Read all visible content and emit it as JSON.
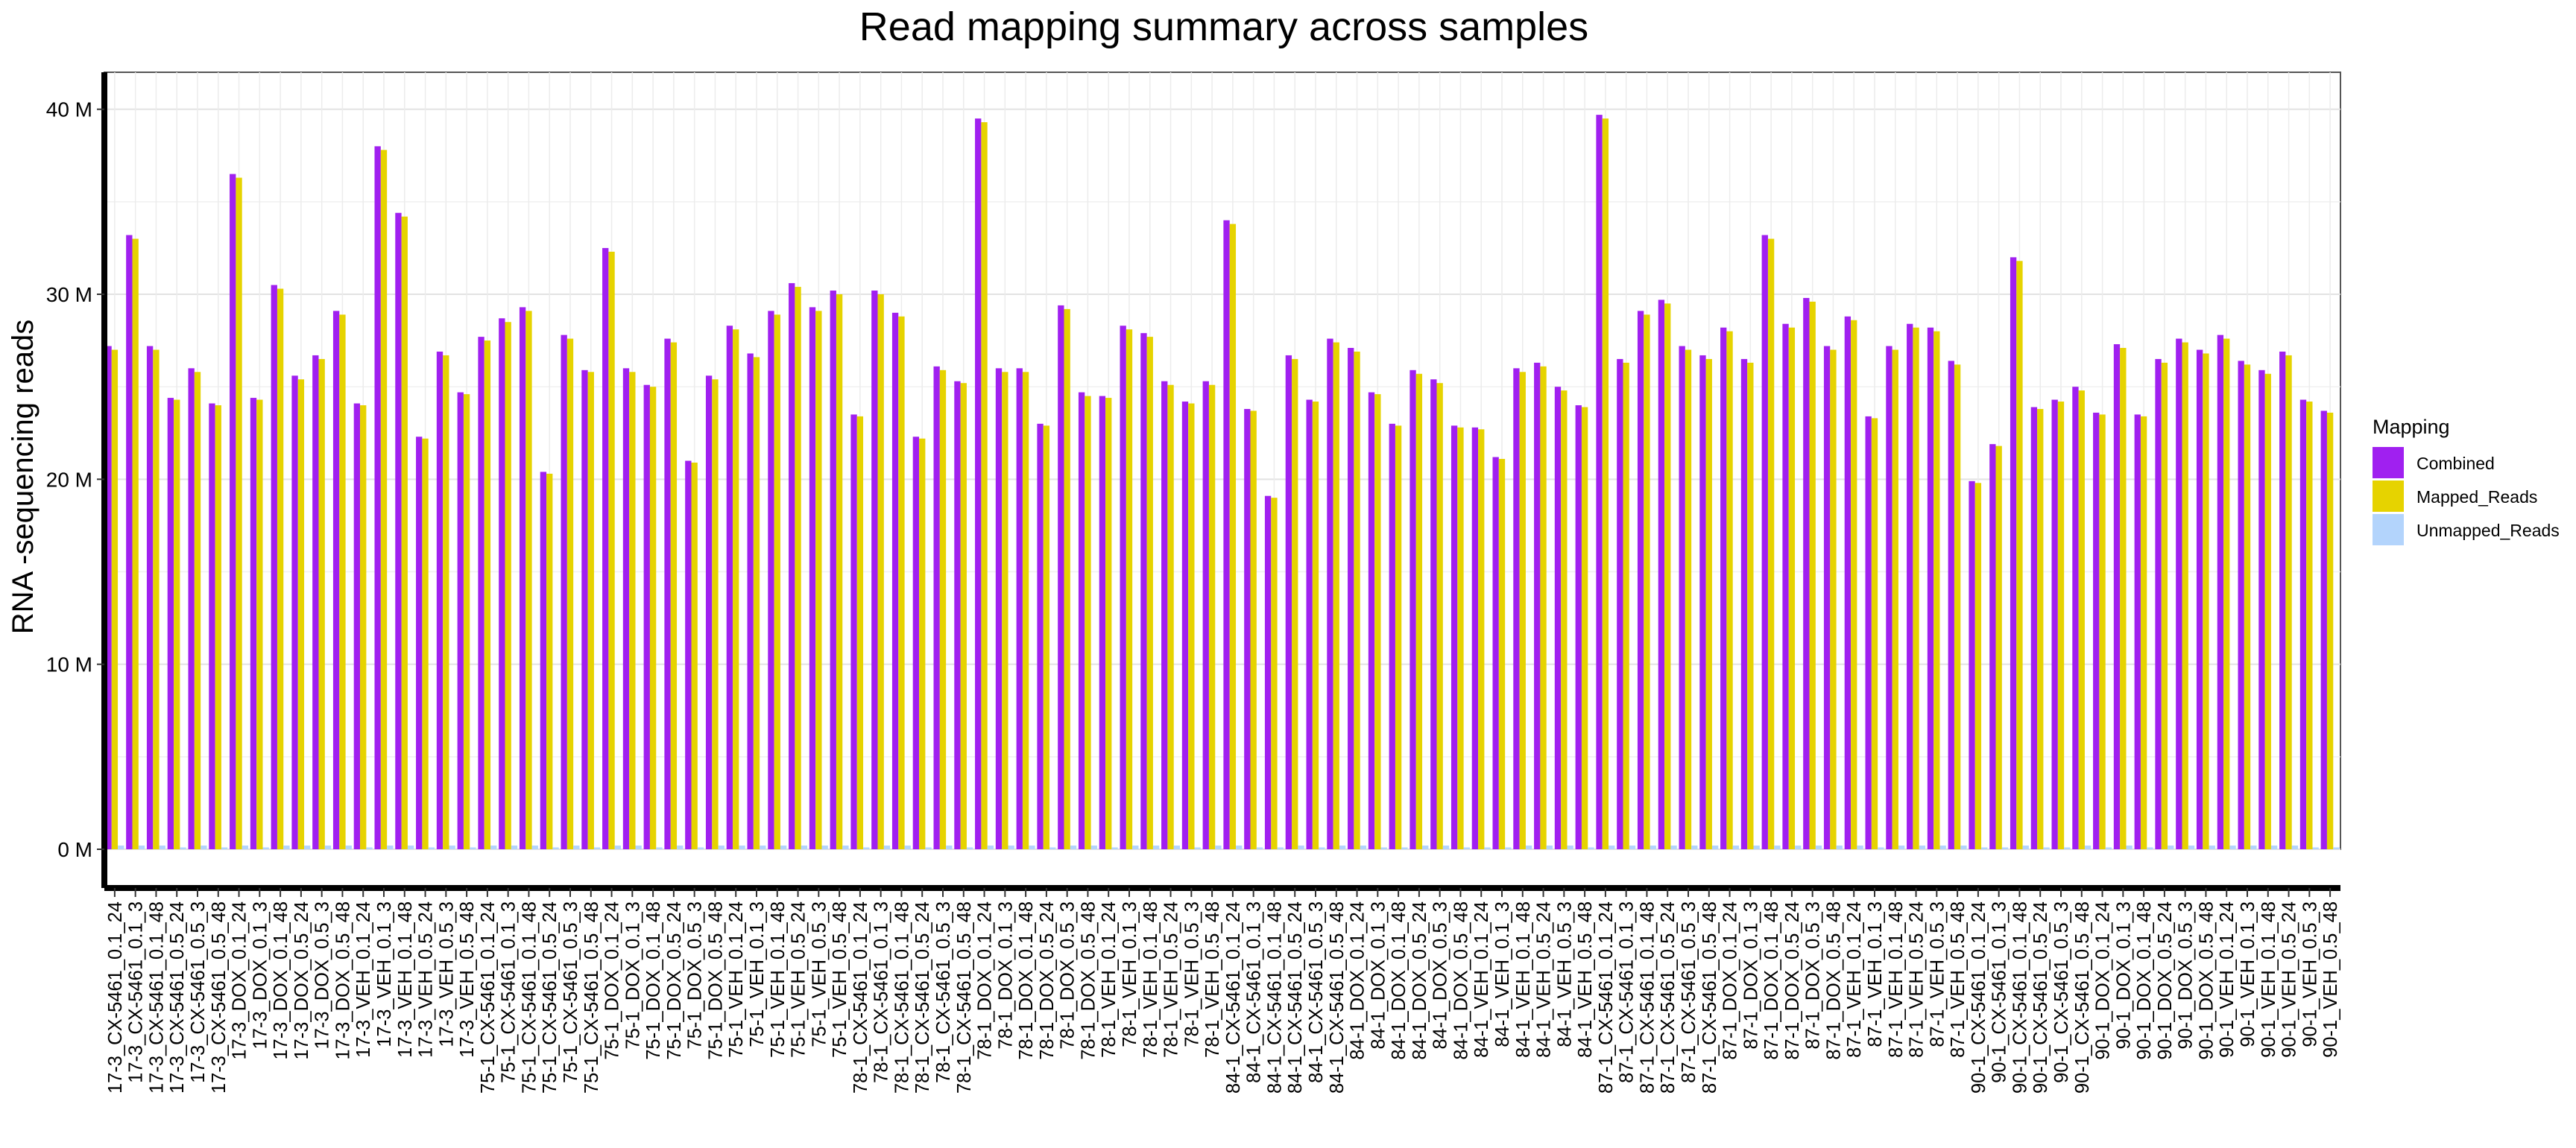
{
  "chart_data": {
    "type": "bar",
    "title": "Read mapping summary across samples",
    "xlabel": "",
    "ylabel": "RNA -sequencing reads",
    "ylim": [
      0,
      42
    ],
    "yticks": [
      0,
      10,
      20,
      30,
      40
    ],
    "ytick_labels": [
      "0 M",
      "10 M",
      "20 M",
      "30 M",
      "40 M"
    ],
    "grid": true,
    "legend_title": "Mapping",
    "legend_position": "right",
    "categories": [
      "17-3_CX-5461_0.1_24",
      "17-3_CX-5461_0.1_3",
      "17-3_CX-5461_0.1_48",
      "17-3_CX-5461_0.5_24",
      "17-3_CX-5461_0.5_3",
      "17-3_CX-5461_0.5_48",
      "17-3_DOX_0.1_24",
      "17-3_DOX_0.1_3",
      "17-3_DOX_0.1_48",
      "17-3_DOX_0.5_24",
      "17-3_DOX_0.5_3",
      "17-3_DOX_0.5_48",
      "17-3_VEH_0.1_24",
      "17-3_VEH_0.1_3",
      "17-3_VEH_0.1_48",
      "17-3_VEH_0.5_24",
      "17-3_VEH_0.5_3",
      "17-3_VEH_0.5_48",
      "75-1_CX-5461_0.1_24",
      "75-1_CX-5461_0.1_3",
      "75-1_CX-5461_0.1_48",
      "75-1_CX-5461_0.5_24",
      "75-1_CX-5461_0.5_3",
      "75-1_CX-5461_0.5_48",
      "75-1_DOX_0.1_24",
      "75-1_DOX_0.1_3",
      "75-1_DOX_0.1_48",
      "75-1_DOX_0.5_24",
      "75-1_DOX_0.5_3",
      "75-1_DOX_0.5_48",
      "75-1_VEH_0.1_24",
      "75-1_VEH_0.1_3",
      "75-1_VEH_0.1_48",
      "75-1_VEH_0.5_24",
      "75-1_VEH_0.5_3",
      "75-1_VEH_0.5_48",
      "78-1_CX-5461_0.1_24",
      "78-1_CX-5461_0.1_3",
      "78-1_CX-5461_0.1_48",
      "78-1_CX-5461_0.5_24",
      "78-1_CX-5461_0.5_3",
      "78-1_CX-5461_0.5_48",
      "78-1_DOX_0.1_24",
      "78-1_DOX_0.1_3",
      "78-1_DOX_0.1_48",
      "78-1_DOX_0.5_24",
      "78-1_DOX_0.5_3",
      "78-1_DOX_0.5_48",
      "78-1_VEH_0.1_24",
      "78-1_VEH_0.1_3",
      "78-1_VEH_0.1_48",
      "78-1_VEH_0.5_24",
      "78-1_VEH_0.5_3",
      "78-1_VEH_0.5_48",
      "84-1_CX-5461_0.1_24",
      "84-1_CX-5461_0.1_3",
      "84-1_CX-5461_0.1_48",
      "84-1_CX-5461_0.5_24",
      "84-1_CX-5461_0.5_3",
      "84-1_CX-5461_0.5_48",
      "84-1_DOX_0.1_24",
      "84-1_DOX_0.1_3",
      "84-1_DOX_0.1_48",
      "84-1_DOX_0.5_24",
      "84-1_DOX_0.5_3",
      "84-1_DOX_0.5_48",
      "84-1_VEH_0.1_24",
      "84-1_VEH_0.1_3",
      "84-1_VEH_0.1_48",
      "84-1_VEH_0.5_24",
      "84-1_VEH_0.5_3",
      "84-1_VEH_0.5_48",
      "87-1_CX-5461_0.1_24",
      "87-1_CX-5461_0.1_3",
      "87-1_CX-5461_0.1_48",
      "87-1_CX-5461_0.5_24",
      "87-1_CX-5461_0.5_3",
      "87-1_CX-5461_0.5_48",
      "87-1_DOX_0.1_24",
      "87-1_DOX_0.1_3",
      "87-1_DOX_0.1_48",
      "87-1_DOX_0.5_24",
      "87-1_DOX_0.5_3",
      "87-1_DOX_0.5_48",
      "87-1_VEH_0.1_24",
      "87-1_VEH_0.1_3",
      "87-1_VEH_0.1_48",
      "87-1_VEH_0.5_24",
      "87-1_VEH_0.5_3",
      "87-1_VEH_0.5_48",
      "90-1_CX-5461_0.1_24",
      "90-1_CX-5461_0.1_3",
      "90-1_CX-5461_0.1_48",
      "90-1_CX-5461_0.5_24",
      "90-1_CX-5461_0.5_3",
      "90-1_CX-5461_0.5_48",
      "90-1_DOX_0.1_24",
      "90-1_DOX_0.1_3",
      "90-1_DOX_0.1_48",
      "90-1_DOX_0.5_24",
      "90-1_DOX_0.5_3",
      "90-1_DOX_0.5_48",
      "90-1_VEH_0.1_24",
      "90-1_VEH_0.1_3",
      "90-1_VEH_0.1_48",
      "90-1_VEH_0.5_24",
      "90-1_VEH_0.5_3",
      "90-1_VEH_0.5_48"
    ],
    "series": [
      {
        "name": "Combined",
        "color": "#A020F0",
        "values": [
          27.2,
          33.2,
          27.2,
          24.4,
          26.0,
          24.1,
          36.5,
          24.4,
          30.5,
          25.6,
          26.7,
          29.1,
          24.1,
          38.0,
          34.4,
          22.3,
          26.9,
          24.7,
          27.7,
          28.7,
          29.3,
          20.4,
          27.8,
          25.9,
          32.5,
          26.0,
          25.1,
          27.6,
          21.0,
          25.6,
          28.3,
          26.8,
          29.1,
          30.6,
          29.3,
          30.2,
          23.5,
          30.2,
          29.0,
          22.3,
          26.1,
          25.3,
          39.5,
          26.0,
          26.0,
          23.0,
          29.4,
          24.7,
          24.5,
          28.3,
          27.9,
          25.3,
          24.2,
          25.3,
          34.0,
          23.8,
          19.1,
          26.7,
          24.3,
          27.6,
          27.1,
          24.7,
          23.0,
          25.9,
          25.4,
          22.9,
          22.8,
          21.2,
          26.0,
          26.3,
          25.0,
          24.0,
          39.7,
          26.5,
          29.1,
          29.7,
          27.2,
          26.7,
          28.2,
          26.5,
          33.2,
          28.4,
          29.8,
          27.2,
          28.8,
          23.4,
          27.2,
          28.4,
          28.2,
          26.4,
          19.9,
          21.9,
          32.0,
          23.9,
          24.3,
          25.0,
          23.6,
          27.3,
          23.5,
          26.5,
          27.6,
          27.0,
          27.8,
          26.4,
          25.9,
          26.9,
          24.3,
          23.7
        ]
      },
      {
        "name": "Mapped_Reads",
        "color": "#E6D300",
        "values": [
          27.0,
          33.0,
          27.0,
          24.3,
          25.8,
          24.0,
          36.3,
          24.3,
          30.3,
          25.4,
          26.5,
          28.9,
          24.0,
          37.8,
          34.2,
          22.2,
          26.7,
          24.6,
          27.5,
          28.5,
          29.1,
          20.3,
          27.6,
          25.8,
          32.3,
          25.8,
          25.0,
          27.4,
          20.9,
          25.4,
          28.1,
          26.6,
          28.9,
          30.4,
          29.1,
          30.0,
          23.4,
          30.0,
          28.8,
          22.2,
          25.9,
          25.2,
          39.3,
          25.8,
          25.8,
          22.9,
          29.2,
          24.5,
          24.4,
          28.1,
          27.7,
          25.1,
          24.1,
          25.1,
          33.8,
          23.7,
          19.0,
          26.5,
          24.2,
          27.4,
          26.9,
          24.6,
          22.9,
          25.7,
          25.2,
          22.8,
          22.7,
          21.1,
          25.8,
          26.1,
          24.8,
          23.9,
          39.5,
          26.3,
          28.9,
          29.5,
          27.0,
          26.5,
          28.0,
          26.3,
          33.0,
          28.2,
          29.6,
          27.0,
          28.6,
          23.3,
          27.0,
          28.2,
          28.0,
          26.2,
          19.8,
          21.8,
          31.8,
          23.8,
          24.2,
          24.8,
          23.5,
          27.1,
          23.4,
          26.3,
          27.4,
          26.8,
          27.6,
          26.2,
          25.7,
          26.7,
          24.2,
          23.6
        ]
      },
      {
        "name": "Unmapped_Reads",
        "color": "#B3D4FC",
        "values": [
          0.2,
          0.2,
          0.2,
          0.1,
          0.2,
          0.1,
          0.2,
          0.1,
          0.2,
          0.2,
          0.2,
          0.2,
          0.1,
          0.2,
          0.2,
          0.1,
          0.2,
          0.1,
          0.2,
          0.2,
          0.2,
          0.1,
          0.2,
          0.1,
          0.2,
          0.2,
          0.1,
          0.2,
          0.1,
          0.2,
          0.2,
          0.2,
          0.2,
          0.2,
          0.2,
          0.2,
          0.1,
          0.2,
          0.2,
          0.1,
          0.2,
          0.1,
          0.2,
          0.2,
          0.2,
          0.1,
          0.2,
          0.2,
          0.1,
          0.2,
          0.2,
          0.2,
          0.1,
          0.2,
          0.2,
          0.1,
          0.1,
          0.2,
          0.1,
          0.2,
          0.2,
          0.1,
          0.1,
          0.2,
          0.2,
          0.1,
          0.1,
          0.1,
          0.2,
          0.2,
          0.2,
          0.1,
          0.2,
          0.2,
          0.2,
          0.2,
          0.2,
          0.2,
          0.2,
          0.2,
          0.2,
          0.2,
          0.2,
          0.2,
          0.2,
          0.1,
          0.2,
          0.2,
          0.2,
          0.2,
          0.1,
          0.1,
          0.2,
          0.1,
          0.1,
          0.2,
          0.1,
          0.2,
          0.1,
          0.2,
          0.2,
          0.2,
          0.2,
          0.2,
          0.2,
          0.2,
          0.1,
          0.1
        ]
      }
    ]
  }
}
